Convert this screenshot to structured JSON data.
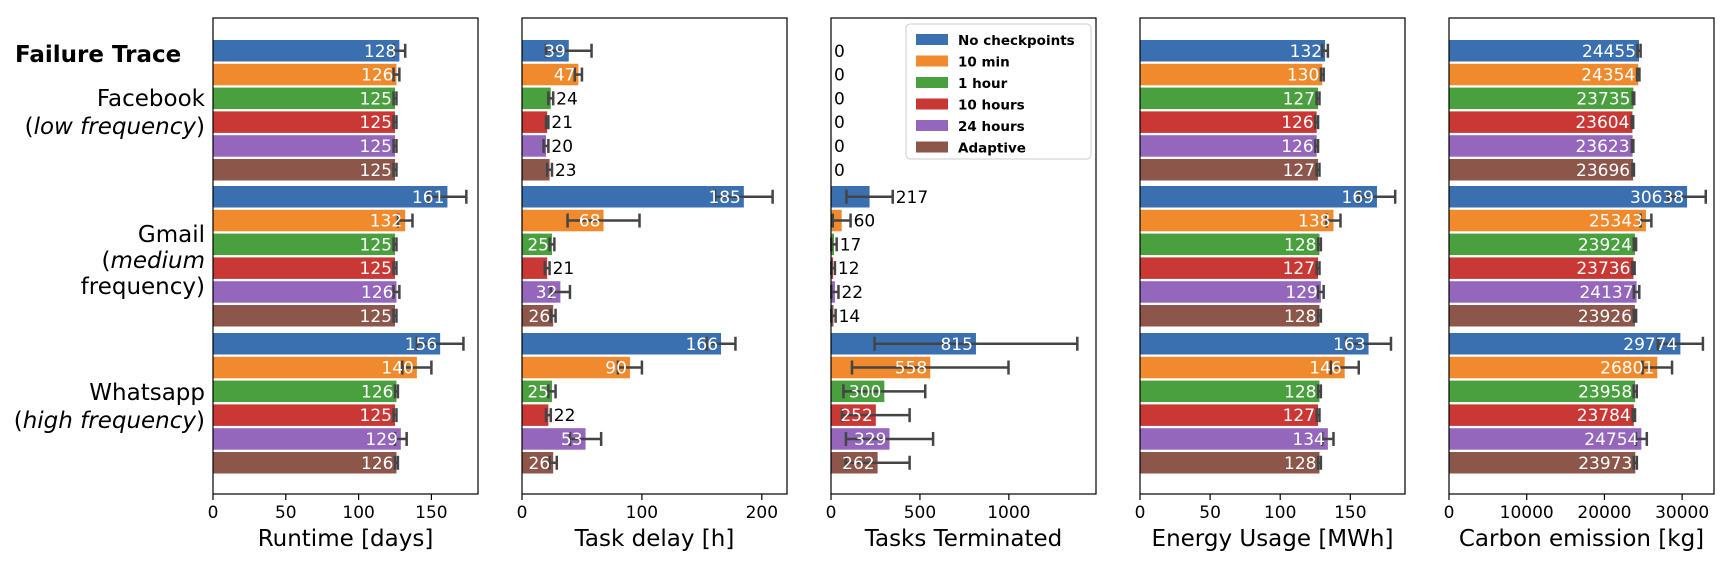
{
  "title": "Failure Trace",
  "group_labels": [
    {
      "name": "Facebook",
      "lines": [
        "Facebook",
        "(low frequency)"
      ],
      "italic": "low frequency"
    },
    {
      "name": "Gmail",
      "lines": [
        "Gmail",
        "(medium",
        "frequency)"
      ],
      "italic": "medium"
    },
    {
      "name": "Whatsapp",
      "lines": [
        "Whatsapp",
        "(high frequency)"
      ],
      "italic": "high frequency"
    }
  ],
  "legend": [
    {
      "label": "No checkpoints",
      "color": "#3a6fb0"
    },
    {
      "label": "10 min",
      "color": "#f08a2c"
    },
    {
      "label": "1 hour",
      "color": "#4aa03f"
    },
    {
      "label": "10 hours",
      "color": "#c93835"
    },
    {
      "label": "24 hours",
      "color": "#9467bd"
    },
    {
      "label": "Adaptive",
      "color": "#8c564b"
    }
  ],
  "chart_data": [
    {
      "type": "bar",
      "orientation": "horizontal",
      "xlabel": "Runtime [days]",
      "xlim": [
        0,
        182
      ],
      "ticks": [
        0,
        50,
        100,
        150
      ],
      "categories": [
        "Facebook",
        "Gmail",
        "Whatsapp"
      ],
      "series": [
        {
          "name": "No checkpoints",
          "values": [
            128,
            161,
            156
          ],
          "errors": [
            4,
            13,
            16
          ]
        },
        {
          "name": "10 min",
          "values": [
            126,
            132,
            140
          ],
          "errors": [
            2,
            5,
            10
          ]
        },
        {
          "name": "1 hour",
          "values": [
            125,
            125,
            126
          ],
          "errors": [
            1,
            1,
            1
          ]
        },
        {
          "name": "10 hours",
          "values": [
            125,
            125,
            125
          ],
          "errors": [
            1,
            1,
            1
          ]
        },
        {
          "name": "24 hours",
          "values": [
            125,
            126,
            129
          ],
          "errors": [
            1,
            2,
            4
          ]
        },
        {
          "name": "Adaptive",
          "values": [
            125,
            125,
            126
          ],
          "errors": [
            1,
            1,
            1
          ]
        }
      ]
    },
    {
      "type": "bar",
      "orientation": "horizontal",
      "xlabel": "Task delay [h]",
      "xlim": [
        0,
        221
      ],
      "ticks": [
        0,
        100,
        200
      ],
      "categories": [
        "Facebook",
        "Gmail",
        "Whatsapp"
      ],
      "series": [
        {
          "name": "No checkpoints",
          "values": [
            39,
            185,
            166
          ],
          "errors": [
            19,
            24,
            12
          ]
        },
        {
          "name": "10 min",
          "values": [
            47,
            68,
            90
          ],
          "errors": [
            3,
            30,
            10
          ]
        },
        {
          "name": "1 hour",
          "values": [
            24,
            25,
            25
          ],
          "errors": [
            2,
            2,
            3
          ]
        },
        {
          "name": "10 hours",
          "values": [
            21,
            21,
            22
          ],
          "errors": [
            1,
            2,
            2
          ]
        },
        {
          "name": "24 hours",
          "values": [
            20,
            32,
            53
          ],
          "errors": [
            2,
            8,
            13
          ]
        },
        {
          "name": "Adaptive",
          "values": [
            23,
            26,
            26
          ],
          "errors": [
            2,
            2,
            3
          ]
        }
      ]
    },
    {
      "type": "bar",
      "orientation": "horizontal",
      "xlabel": "Tasks Terminated",
      "xlim": [
        0,
        1490
      ],
      "ticks": [
        0,
        500,
        1000
      ],
      "categories": [
        "Facebook",
        "Gmail",
        "Whatsapp"
      ],
      "series": [
        {
          "name": "No checkpoints",
          "values": [
            0,
            217,
            815
          ],
          "errors": [
            0,
            130,
            570
          ]
        },
        {
          "name": "10 min",
          "values": [
            0,
            60,
            558
          ],
          "errors": [
            0,
            50,
            440
          ]
        },
        {
          "name": "1 hour",
          "values": [
            0,
            17,
            300
          ],
          "errors": [
            0,
            15,
            230
          ]
        },
        {
          "name": "10 hours",
          "values": [
            0,
            12,
            252
          ],
          "errors": [
            0,
            10,
            190
          ]
        },
        {
          "name": "24 hours",
          "values": [
            0,
            22,
            329
          ],
          "errors": [
            0,
            20,
            245
          ]
        },
        {
          "name": "Adaptive",
          "values": [
            0,
            14,
            262
          ],
          "errors": [
            0,
            12,
            180
          ]
        }
      ]
    },
    {
      "type": "bar",
      "orientation": "horizontal",
      "xlabel": "Energy Usage [MWh]",
      "xlim": [
        0,
        189
      ],
      "ticks": [
        0,
        50,
        100,
        150
      ],
      "categories": [
        "Facebook",
        "Gmail",
        "Whatsapp"
      ],
      "series": [
        {
          "name": "No checkpoints",
          "values": [
            132,
            169,
            163
          ],
          "errors": [
            2,
            13,
            16
          ]
        },
        {
          "name": "10 min",
          "values": [
            130,
            138,
            146
          ],
          "errors": [
            1,
            5,
            10
          ]
        },
        {
          "name": "1 hour",
          "values": [
            127,
            128,
            128
          ],
          "errors": [
            1,
            1,
            1
          ]
        },
        {
          "name": "10 hours",
          "values": [
            126,
            127,
            127
          ],
          "errors": [
            1,
            1,
            1
          ]
        },
        {
          "name": "24 hours",
          "values": [
            126,
            129,
            134
          ],
          "errors": [
            1,
            2,
            4
          ]
        },
        {
          "name": "Adaptive",
          "values": [
            127,
            128,
            128
          ],
          "errors": [
            1,
            1,
            1
          ]
        }
      ]
    },
    {
      "type": "bar",
      "orientation": "horizontal",
      "xlabel": "Carbon emission [kg]",
      "xlim": [
        0,
        34100
      ],
      "ticks": [
        0,
        10000,
        20000,
        30000
      ],
      "categories": [
        "Facebook",
        "Gmail",
        "Whatsapp"
      ],
      "series": [
        {
          "name": "No checkpoints",
          "values": [
            24455,
            30638,
            29774
          ],
          "errors": [
            200,
            2400,
            2900
          ]
        },
        {
          "name": "10 min",
          "values": [
            24354,
            25343,
            26801
          ],
          "errors": [
            150,
            700,
            1900
          ]
        },
        {
          "name": "1 hour",
          "values": [
            23735,
            23924,
            23958
          ],
          "errors": [
            100,
            150,
            200
          ]
        },
        {
          "name": "10 hours",
          "values": [
            23604,
            23736,
            23784
          ],
          "errors": [
            100,
            150,
            150
          ]
        },
        {
          "name": "24 hours",
          "values": [
            23623,
            24137,
            24754
          ],
          "errors": [
            100,
            350,
            700
          ]
        },
        {
          "name": "Adaptive",
          "values": [
            23696,
            23926,
            23973
          ],
          "errors": [
            100,
            150,
            200
          ]
        }
      ]
    }
  ]
}
